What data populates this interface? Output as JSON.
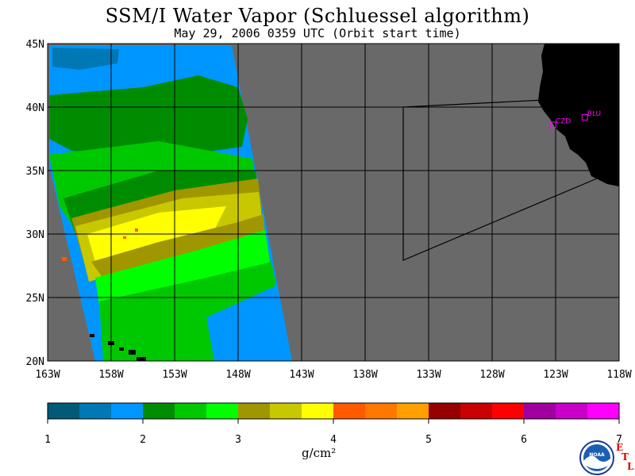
{
  "title": "SSM/I Water Vapor (Schluessel algorithm)",
  "subtitle": "May 29, 2006  0359 UTC  (Orbit start time)",
  "lat_labels": [
    "45N",
    "40N",
    "35N",
    "30N",
    "25N",
    "20N"
  ],
  "lon_labels": [
    "163W",
    "158W",
    "153W",
    "148W",
    "143W",
    "138W",
    "133W",
    "128W",
    "123W",
    "118W"
  ],
  "stations": [
    {
      "code": "CZD",
      "lat": 38.6,
      "lon": -123.2
    },
    {
      "code": "BLU",
      "lat": 39.2,
      "lon": -120.7
    }
  ],
  "colorbar": {
    "tick_labels": [
      "1",
      "2",
      "3",
      "4",
      "5",
      "6",
      "7"
    ],
    "units": "g/cm²",
    "colors": [
      "#005a78",
      "#0078b4",
      "#0096ff",
      "#008c00",
      "#00c800",
      "#00ff00",
      "#a09600",
      "#c8c800",
      "#ffff00",
      "#ff5a00",
      "#ff7800",
      "#ffa000",
      "#960000",
      "#c80000",
      "#ff0000",
      "#a000a0",
      "#c800c8",
      "#ff00ff"
    ]
  },
  "colors": {
    "ocean_nodata": "#696969",
    "land": "#000000",
    "grid": "#000000"
  }
}
